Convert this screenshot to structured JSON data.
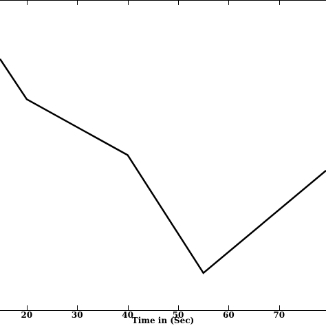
{
  "chart_data": {
    "type": "line",
    "title": "",
    "xlabel": "Time in (Sec)",
    "ylabel": "",
    "xlim": [
      14.7,
      79.3
    ],
    "x_ticks": [
      20,
      30,
      40,
      50,
      60,
      70
    ],
    "x_tick_labels": [
      "20",
      "30",
      "40",
      "50",
      "60",
      "70"
    ],
    "grid": false,
    "series": [
      {
        "x": [
          14.7,
          20,
          40,
          55,
          79.3
        ],
        "y": [
          0.81,
          0.68,
          0.5,
          0.12,
          0.45
        ]
      }
    ],
    "ylim": [
      0,
      1
    ],
    "colors": {
      "line": "#000000",
      "axes": "#000000",
      "background": "#ffffff"
    }
  }
}
